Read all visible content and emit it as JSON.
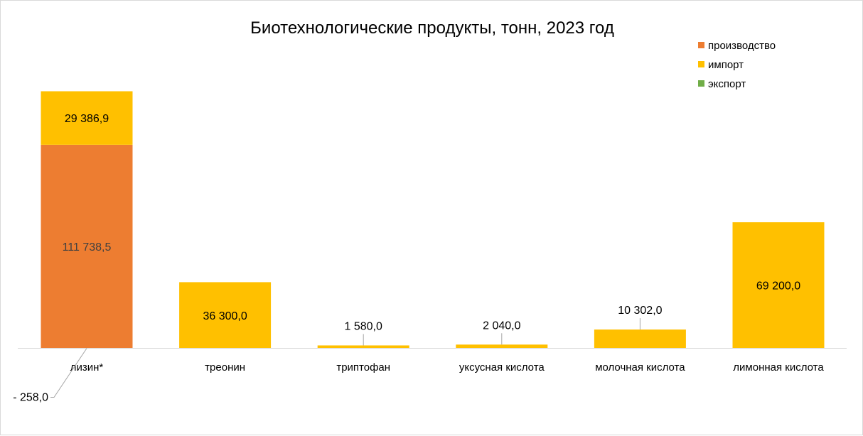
{
  "chart_data": {
    "type": "bar",
    "stacked": true,
    "title": "Биотехнологические продукты, тонн, 2023 год",
    "categories": [
      "лизин*",
      "треонин",
      "триптофан",
      "уксусная кислота",
      "молочная кислота",
      "лимонная кислота"
    ],
    "series": [
      {
        "name": "производство",
        "color": "#ED7D31",
        "values": [
          111738.5,
          0,
          0,
          0,
          0,
          0
        ],
        "labels": [
          "111 738,5",
          "",
          "",
          "",
          "",
          ""
        ]
      },
      {
        "name": "импорт",
        "color": "#FFC000",
        "values": [
          29386.9,
          36300.0,
          1580.0,
          2040.0,
          10302.0,
          69200.0
        ],
        "labels": [
          "29 386,9",
          "36 300,0",
          "1 580,0",
          "2 040,0",
          "10 302,0",
          "69 200,0"
        ]
      },
      {
        "name": "экспорт",
        "color": "#70AD47",
        "values": [
          -258.0,
          0,
          0,
          0,
          0,
          0
        ],
        "labels": [
          "- 258,0",
          "",
          "",
          "",
          "",
          ""
        ]
      }
    ],
    "ylim": [
      -258,
      141125.4
    ],
    "legend_position": "top-right",
    "grid": false
  }
}
